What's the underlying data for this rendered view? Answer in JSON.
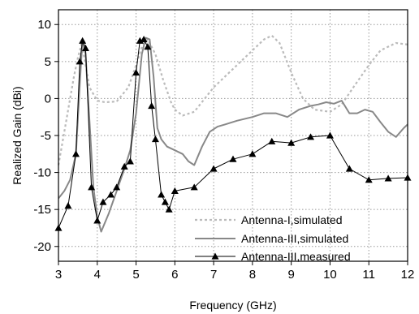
{
  "chart_data": {
    "type": "line",
    "title": "",
    "xlabel": "Frequency (GHz)",
    "ylabel": "Realized Gain (dBi)",
    "xlim": [
      3,
      12
    ],
    "ylim": [
      -22,
      12
    ],
    "xticks": [
      3,
      4,
      5,
      6,
      7,
      8,
      9,
      10,
      11,
      12
    ],
    "yticks": [
      -20,
      -15,
      -10,
      -5,
      0,
      5,
      10
    ],
    "grid": true,
    "legend_position": "bottom-right",
    "series": [
      {
        "name": "Antenna-I,simulated",
        "color": "#bbbbbb",
        "style": "dotted",
        "marker": "none",
        "x": [
          3.0,
          3.2,
          3.4,
          3.5,
          3.6,
          3.7,
          3.8,
          4.0,
          4.2,
          4.5,
          4.8,
          5.0,
          5.15,
          5.3,
          5.5,
          5.7,
          5.9,
          6.0,
          6.2,
          6.5,
          7.0,
          7.5,
          8.0,
          8.3,
          8.5,
          8.7,
          9.0,
          9.3,
          9.6,
          10.0,
          10.3,
          10.6,
          11.0,
          11.3,
          11.7,
          12.0
        ],
        "y": [
          -9,
          -3,
          3,
          5.5,
          7.5,
          4.5,
          1.5,
          -0.3,
          -0.5,
          -0.4,
          1.5,
          4.5,
          7,
          8,
          6,
          2.5,
          -0.5,
          -1.5,
          -2.3,
          -1.8,
          1.5,
          4,
          6.5,
          8,
          8.5,
          7.5,
          3.5,
          0,
          -1.5,
          -1.8,
          -0.8,
          1.5,
          4.5,
          6.5,
          7.5,
          7.3
        ]
      },
      {
        "name": "Antenna-III,simulated",
        "color": "#888888",
        "style": "solid",
        "marker": "none",
        "x": [
          3.0,
          3.15,
          3.3,
          3.45,
          3.55,
          3.62,
          3.7,
          3.8,
          3.9,
          4.0,
          4.1,
          4.3,
          4.5,
          4.7,
          4.85,
          5.0,
          5.15,
          5.25,
          5.35,
          5.45,
          5.55,
          5.65,
          5.8,
          6.0,
          6.2,
          6.35,
          6.5,
          6.7,
          6.9,
          7.1,
          7.3,
          7.6,
          8.0,
          8.3,
          8.6,
          8.9,
          9.2,
          9.5,
          9.7,
          9.9,
          10.1,
          10.3,
          10.5,
          10.7,
          10.9,
          11.1,
          11.3,
          11.5,
          11.7,
          11.9,
          12.0
        ],
        "y": [
          -13.5,
          -12.5,
          -11,
          -7.5,
          2,
          8,
          6,
          -3,
          -12,
          -16,
          -18,
          -15.5,
          -12.5,
          -9.5,
          -7,
          -2,
          6,
          8.2,
          8,
          3,
          -4,
          -5.5,
          -6.5,
          -7,
          -7.5,
          -8.5,
          -9,
          -6.5,
          -4.5,
          -3.8,
          -3.5,
          -3,
          -2.5,
          -2,
          -2,
          -2.5,
          -1.5,
          -1,
          -0.8,
          -0.5,
          -0.7,
          -0.3,
          -2,
          -2,
          -1.5,
          -1.8,
          -3.2,
          -4.5,
          -5.2,
          -4,
          -3.5
        ]
      },
      {
        "name": "Antenna-III,measured",
        "color": "#000000",
        "style": "solid",
        "marker": "triangle",
        "x": [
          3.0,
          3.25,
          3.45,
          3.55,
          3.62,
          3.7,
          3.85,
          4.0,
          4.15,
          4.35,
          4.5,
          4.7,
          4.85,
          5.0,
          5.1,
          5.2,
          5.3,
          5.4,
          5.5,
          5.65,
          5.75,
          5.85,
          6.0,
          6.5,
          7.0,
          7.5,
          8.0,
          8.5,
          9.0,
          9.5,
          10.0,
          10.5,
          11.0,
          11.5,
          12.0
        ],
        "y": [
          -17.5,
          -14.5,
          -7.5,
          5,
          7.8,
          6.8,
          -12,
          -16.5,
          -14,
          -13,
          -12,
          -9.2,
          -8.5,
          3.5,
          7.8,
          8,
          7,
          -1,
          -5.5,
          -13,
          -14,
          -15,
          -12.5,
          -12,
          -9.5,
          -8.2,
          -7.5,
          -5.8,
          -6,
          -5.2,
          -5,
          -9.5,
          -11,
          -10.8,
          -10.7
        ]
      }
    ]
  }
}
